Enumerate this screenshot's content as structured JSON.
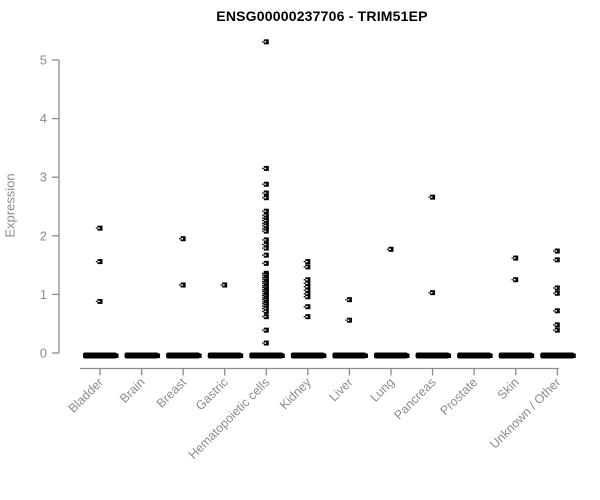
{
  "title": "ENSG00000237706 - TRIM51EP",
  "colors": {
    "point": "#000000",
    "axis": "#8c8c8c",
    "tick_label": "#8c8c8c",
    "title": "#000000",
    "background": "#ffffff"
  },
  "chart_data": {
    "type": "scatter",
    "subtype": "strip-plot",
    "title": "ENSG00000237706 - TRIM51EP",
    "xlabel": "",
    "ylabel": "Expression",
    "ylim": [
      0,
      5
    ],
    "yticks": [
      0,
      1,
      2,
      3,
      4,
      5
    ],
    "grid": false,
    "legend": "none",
    "marker": "small-black-square",
    "note": "every category also shows a dense horizontal mass of overlapping points at expression 0",
    "categories": [
      {
        "label": "Bladder",
        "zero_mass": true,
        "values": [
          2.13,
          1.56,
          0.88
        ]
      },
      {
        "label": "Brain",
        "zero_mass": true,
        "values": []
      },
      {
        "label": "Breast",
        "zero_mass": true,
        "values": [
          1.95,
          1.16
        ]
      },
      {
        "label": "Gastric",
        "zero_mass": true,
        "values": [
          1.16
        ]
      },
      {
        "label": "Hematopoietic cells",
        "zero_mass": true,
        "values": [
          5.31,
          3.15,
          2.88,
          2.73,
          2.65,
          2.42,
          2.35,
          2.3,
          2.26,
          2.21,
          2.17,
          2.12,
          2.08,
          1.93,
          1.85,
          1.79,
          1.67,
          1.53,
          1.36,
          1.33,
          1.29,
          1.26,
          1.22,
          1.19,
          1.15,
          1.12,
          1.08,
          1.05,
          1.01,
          0.98,
          0.94,
          0.91,
          0.87,
          0.84,
          0.8,
          0.76,
          0.71,
          0.62,
          0.39,
          0.17
        ]
      },
      {
        "label": "Kidney",
        "zero_mass": true,
        "values": [
          1.56,
          1.47,
          1.25,
          1.19,
          1.13,
          1.07,
          1.01,
          0.96,
          0.79,
          0.62
        ]
      },
      {
        "label": "Liver",
        "zero_mass": true,
        "values": [
          0.91,
          0.56
        ]
      },
      {
        "label": "Lung",
        "zero_mass": true,
        "values": [
          1.77
        ]
      },
      {
        "label": "Pancreas",
        "zero_mass": true,
        "values": [
          2.66,
          1.03
        ]
      },
      {
        "label": "Prostate",
        "zero_mass": true,
        "values": []
      },
      {
        "label": "Skin",
        "zero_mass": true,
        "values": [
          1.62,
          1.25
        ]
      },
      {
        "label": "Unknown / Other",
        "zero_mass": true,
        "values": [
          1.74,
          1.59,
          1.11,
          1.02,
          0.72,
          0.48,
          0.39
        ]
      }
    ]
  }
}
